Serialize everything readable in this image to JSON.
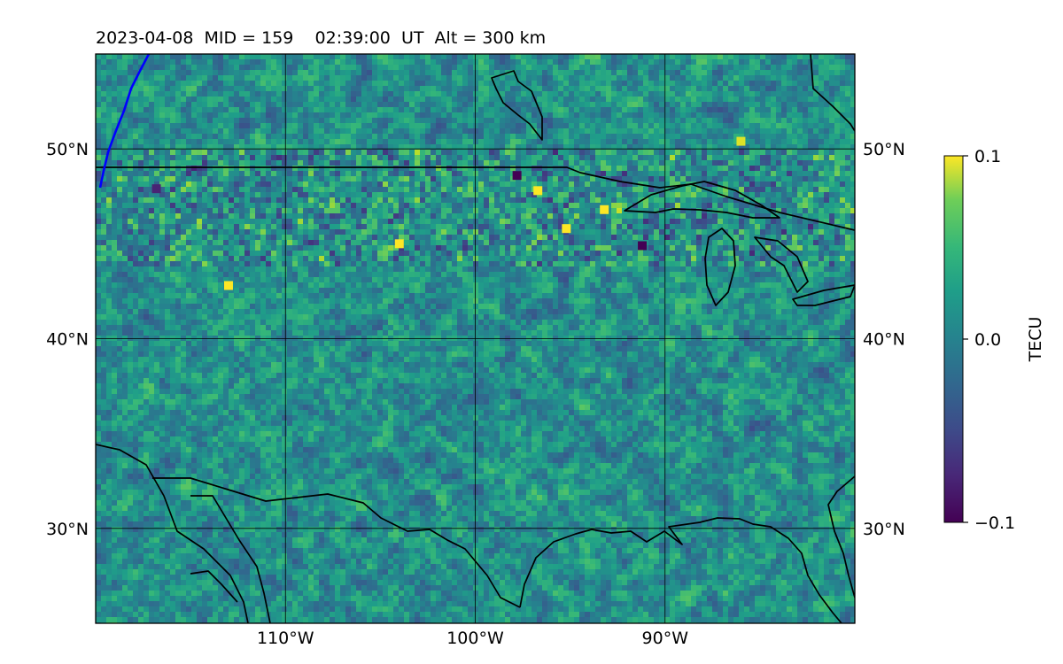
{
  "title": "2023-04-08  MID = 159    02:39:00  UT  Alt = 300 km",
  "map": {
    "lon_range": [
      -120,
      -80
    ],
    "lat_range": [
      25,
      55
    ],
    "grid": true,
    "lon_ticks": [
      {
        "value": -110,
        "label": "110°W"
      },
      {
        "value": -100,
        "label": "100°W"
      },
      {
        "value": -90,
        "label": "90°W"
      }
    ],
    "lat_ticks": [
      {
        "value": 50,
        "label": "50°N"
      },
      {
        "value": 40,
        "label": "40°N"
      },
      {
        "value": 30,
        "label": "30°N"
      }
    ]
  },
  "colorbar": {
    "label": "TECU",
    "colormap": "viridis",
    "min": -0.1,
    "max": 0.1,
    "ticks": [
      {
        "value": 0.1,
        "label": "0.1"
      },
      {
        "value": 0.0,
        "label": "0.0"
      },
      {
        "value": -0.1,
        "label": "−0.1"
      }
    ]
  },
  "track": {
    "color": "#0000ff"
  },
  "chart_data": {
    "type": "heatmap",
    "title": "2023-04-08  MID = 159    02:39:00  UT  Alt = 300 km",
    "colorbar_label": "TECU",
    "vmin": -0.1,
    "vmax": 0.1,
    "hotspots": [
      {
        "lon": -95.2,
        "lat": 45.8,
        "value": 0.1
      },
      {
        "lon": -93.2,
        "lat": 46.8,
        "value": 0.1
      },
      {
        "lon": -96.7,
        "lat": 47.8,
        "value": 0.1
      },
      {
        "lon": -113.0,
        "lat": 42.8,
        "value": 0.1
      },
      {
        "lon": -104.0,
        "lat": 45.0,
        "value": 0.1
      },
      {
        "lon": -86.0,
        "lat": 50.4,
        "value": 0.09
      },
      {
        "lon": -97.8,
        "lat": 48.6,
        "value": -0.1
      },
      {
        "lon": -91.2,
        "lat": 44.9,
        "value": -0.1
      },
      {
        "lon": -116.8,
        "lat": 47.9,
        "value": -0.08
      }
    ]
  }
}
